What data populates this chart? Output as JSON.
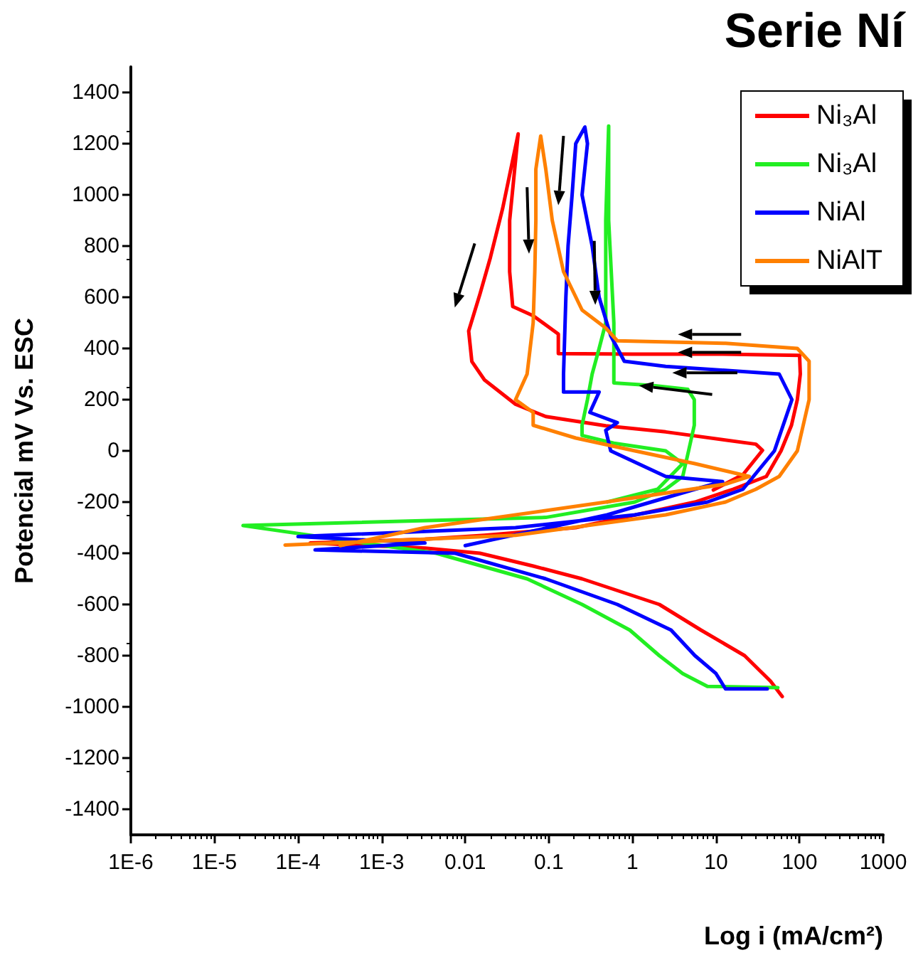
{
  "chart_data": {
    "type": "line",
    "title": "Serie Ní",
    "xlabel": "Log i (mA/cm²)",
    "ylabel": "Potencial mV Vs. ESC",
    "log": "x",
    "legend": "top right",
    "line_style": "solid",
    "xlim": [
      1e-06,
      1000
    ],
    "ylim": [
      -1500,
      1500
    ],
    "xticks": [
      {
        "value": 1e-06,
        "label": "1E-6"
      },
      {
        "value": 1e-05,
        "label": "1E-5"
      },
      {
        "value": 0.0001,
        "label": "1E-4"
      },
      {
        "value": 0.001,
        "label": "1E-3"
      },
      0.01,
      0.1,
      1,
      10,
      100,
      1000
    ],
    "yticks": [
      -1400,
      -1200,
      -1000,
      -800,
      -600,
      -400,
      -200,
      0,
      200,
      400,
      600,
      800,
      1000,
      1200,
      1400
    ],
    "series": [
      {
        "name": "Ni₃Al",
        "color": "#ff0000",
        "x": [
          62,
          45,
          22,
          6.6,
          2.1,
          0.25,
          0.065,
          0.015,
          0.0033,
          0.00032,
          0.00014,
          0.0033,
          0.017,
          0.21,
          1.1,
          5.6,
          16,
          40,
          60,
          80,
          94,
          102,
          100,
          10,
          1,
          0.13,
          0.13,
          0.065,
          0.037,
          0.034,
          0.034,
          0.043,
          0.028,
          0.02,
          0.015,
          0.011,
          0.012,
          0.017,
          0.04,
          0.092,
          0.48,
          2.5,
          30,
          36,
          21,
          9.3
        ],
        "values": [
          -960,
          -900,
          -800,
          -700,
          -600,
          -500,
          -450,
          -400,
          -380,
          -365,
          -360,
          -345,
          -330,
          -300,
          -250,
          -200,
          -150,
          -100,
          0,
          100,
          200,
          300,
          373,
          378,
          378,
          380,
          456,
          528,
          564,
          700,
          900,
          1238,
          946,
          755,
          612,
          468,
          349,
          277,
          182,
          134,
          98,
          74,
          26,
          2,
          -93,
          -153
        ]
      },
      {
        "name": "Ni₃Al",
        "color": "#22ee22",
        "x": [
          55,
          7.9,
          4,
          2.1,
          0.93,
          0.25,
          0.055,
          0.0045,
          2.2e-05,
          0.092,
          1.07,
          2.5,
          4,
          4.7,
          5.5,
          5.5,
          4.6,
          1.8,
          0.6,
          0.6,
          0.52,
          0.52,
          0.48,
          0.48,
          0.4,
          0.33,
          0.29,
          0.25,
          0.25,
          0.6,
          2.5,
          4,
          2,
          0.5
        ],
        "values": [
          -925,
          -920,
          -870,
          -800,
          -700,
          -600,
          -500,
          -400,
          -292,
          -260,
          -200,
          -150,
          -100,
          0,
          100,
          200,
          240,
          255,
          265,
          500,
          900,
          1269,
          900,
          500,
          400,
          300,
          200,
          100,
          60,
          30,
          0,
          -50,
          -150,
          -200
        ]
      },
      {
        "name": "NiAl",
        "color": "#0000ff",
        "x": [
          41,
          13,
          10,
          5.6,
          2.9,
          0.66,
          0.092,
          0.0076,
          0.00016,
          0.0033,
          0.0001,
          0.04,
          1.07,
          7.9,
          21,
          50,
          81,
          57,
          2.5,
          0.8,
          0.55,
          0.4,
          0.33,
          0.25,
          0.29,
          0.27,
          0.21,
          0.19,
          0.17,
          0.16,
          0.15,
          0.15,
          0.4,
          0.31,
          0.66,
          0.48,
          0.55,
          2.5,
          12,
          5.6,
          0.5,
          0.01
        ],
        "values": [
          -930,
          -930,
          -870,
          -800,
          -700,
          -600,
          -500,
          -400,
          -387,
          -360,
          -335,
          -300,
          -250,
          -200,
          -150,
          0,
          200,
          300,
          330,
          350,
          450,
          600,
          800,
          1000,
          1200,
          1265,
          1200,
          1000,
          800,
          600,
          300,
          230,
          230,
          150,
          110,
          80,
          0,
          -100,
          -120,
          -150,
          -250,
          -370
        ]
      },
      {
        "name": "NiAlT",
        "color": "#ff8000",
        "x": [
          7e-05,
          0.04,
          2.5,
          13,
          30,
          57,
          94,
          130,
          130,
          94,
          13,
          0.66,
          0.48,
          0.25,
          0.15,
          0.11,
          0.092,
          0.08,
          0.07,
          0.07,
          0.068,
          0.065,
          0.055,
          0.04,
          0.065,
          0.065,
          0.21,
          1.07,
          5.6,
          25,
          13,
          0.48,
          0.0033,
          0.00032
        ],
        "values": [
          -368,
          -330,
          -250,
          -200,
          -150,
          -100,
          0,
          200,
          350,
          400,
          420,
          430,
          480,
          550,
          700,
          900,
          1100,
          1230,
          1100,
          900,
          700,
          500,
          300,
          200,
          150,
          100,
          50,
          0,
          -50,
          -100,
          -130,
          -200,
          -300,
          -370
        ]
      }
    ]
  }
}
